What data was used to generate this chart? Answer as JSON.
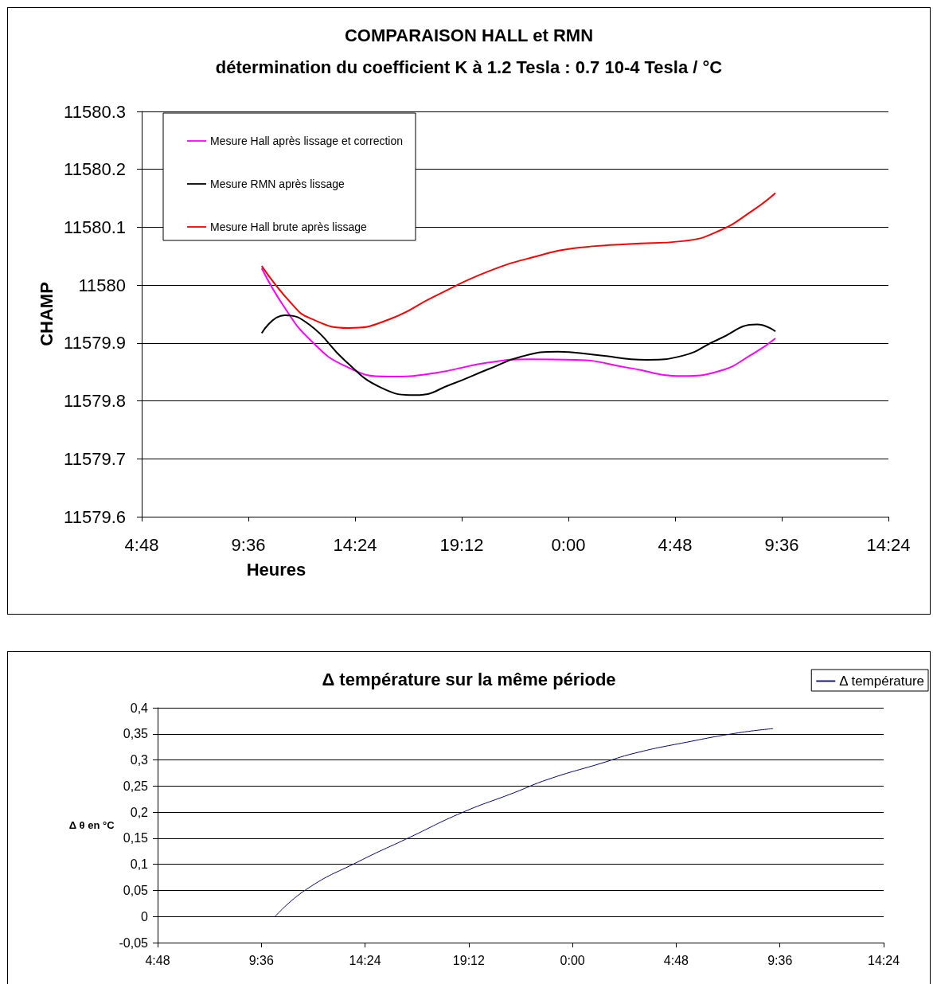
{
  "chart_data": [
    {
      "type": "line",
      "title": "COMPARAISON HALL et RMN",
      "subtitle": "détermination du coefficient K à 1.2 Tesla : 0.7 10-4 Tesla / °C",
      "xlabel": "Heures",
      "ylabel": "CHAMP",
      "xlim": [
        "--01-01T04:48",
        "--01-02T14:24"
      ],
      "xticks": [
        {
          "value": "--01-01T04:48",
          "label": "4:48"
        },
        {
          "value": "--01-01T09:36",
          "label": "9:36"
        },
        {
          "value": "--01-01T14:24",
          "label": "14:24"
        },
        {
          "value": "--01-01T19:12",
          "label": "19:12"
        },
        {
          "value": "--01-02T00:00",
          "label": "0:00"
        },
        {
          "value": "--01-02T04:48",
          "label": "4:48"
        },
        {
          "value": "--01-02T09:36",
          "label": "9:36"
        },
        {
          "value": "--01-02T14:24",
          "label": "14:24"
        }
      ],
      "ylim": [
        11579.6,
        11580.3
      ],
      "yticks": [
        11579.6,
        11579.7,
        11579.8,
        11579.9,
        {
          "value": 11580,
          "label": "11580"
        },
        11580.1,
        11580.2,
        11580.3
      ],
      "grid": "y",
      "legend": "top left",
      "marker": "none",
      "line_style": "solid",
      "series": [
        {
          "name": "Mesure Hall après lissage et correction",
          "color": "#ff00ff",
          "x": [
            "--01-01T10:12",
            "--01-01T11:14",
            "--01-01T12:22",
            "--01-01T13:58",
            "--01-01T15:53",
            "--01-01T17:57",
            "--01-01T20:21",
            "--01-01T22:16",
            "--01-02T00:20",
            "--01-02T02:44",
            "--01-02T05:08",
            "--01-02T06:44",
            "--01-02T08:20",
            "--01-02T09:19"
          ],
          "values": [
            11580.029,
            11579.961,
            11579.906,
            11579.86,
            11579.842,
            11579.848,
            11579.866,
            11579.872,
            11579.871,
            11579.857,
            11579.843,
            11579.851,
            11579.882,
            11579.908
          ]
        },
        {
          "name": "Mesure RMN après lissage",
          "color": "#000000",
          "x": [
            "--01-01T10:12",
            "--01-01T11:14",
            "--01-01T12:22",
            "--01-01T13:58",
            "--01-01T15:34",
            "--01-01T17:09",
            "--01-01T18:45",
            "--01-01T20:21",
            "--01-01T21:56",
            "--01-01T23:32",
            "--01-02T01:08",
            "--01-02T03:32",
            "--01-02T05:08",
            "--01-02T06:44",
            "--01-02T08:29",
            "--01-02T09:19"
          ],
          "values": [
            11579.917,
            11579.948,
            11579.931,
            11579.869,
            11579.823,
            11579.81,
            11579.829,
            11579.854,
            11579.877,
            11579.885,
            11579.88,
            11579.871,
            11579.878,
            11579.906,
            11579.932,
            11579.92
          ]
        },
        {
          "name": "Mesure Hall brute après lissage",
          "color": "#ff0000",
          "x": [
            "--01-01T10:12",
            "--01-01T11:34",
            "--01-01T12:22",
            "--01-01T14:07",
            "--01-01T15:53",
            "--01-01T17:57",
            "--01-01T20:21",
            "--01-01T22:35",
            "--01-02T00:20",
            "--01-02T02:44",
            "--01-02T05:08",
            "--01-02T06:44",
            "--01-02T08:20",
            "--01-02T09:19"
          ],
          "values": [
            11580.033,
            11579.967,
            11579.943,
            11579.926,
            11579.94,
            11579.98,
            11580.023,
            11580.05,
            11580.064,
            11580.071,
            11580.076,
            11580.093,
            11580.13,
            11580.159
          ]
        }
      ]
    },
    {
      "type": "line",
      "title": "Δ température sur la même période",
      "ylabel": "Δ θ en °C",
      "xlim": [
        "--01-01T04:48",
        "--01-02T14:24"
      ],
      "xticks": [
        {
          "value": "--01-01T04:48",
          "label": "4:48"
        },
        {
          "value": "--01-01T09:36",
          "label": "9:36"
        },
        {
          "value": "--01-01T14:24",
          "label": "14:24"
        },
        {
          "value": "--01-01T19:12",
          "label": "19:12"
        },
        {
          "value": "--01-02T00:00",
          "label": "0:00"
        },
        {
          "value": "--01-02T04:48",
          "label": "4:48"
        },
        {
          "value": "--01-02T09:36",
          "label": "9:36"
        },
        {
          "value": "--01-02T14:24",
          "label": "14:24"
        }
      ],
      "ylim": [
        -0.05,
        0.4
      ],
      "yticks": [
        {
          "value": -0.05,
          "label": "-0,05"
        },
        0,
        {
          "value": 0.05,
          "label": "0,05"
        },
        {
          "value": 0.1,
          "label": "0,1"
        },
        {
          "value": 0.15,
          "label": "0,15"
        },
        {
          "value": 0.2,
          "label": "0,2"
        },
        {
          "value": 0.25,
          "label": "0,25"
        },
        {
          "value": 0.3,
          "label": "0,3"
        },
        {
          "value": 0.35,
          "label": "0,35"
        },
        {
          "value": 0.4,
          "label": "0,4"
        }
      ],
      "grid": "y",
      "legend": "top right",
      "marker": "none",
      "line_style": "solid",
      "series": [
        {
          "name": "Δ température",
          "color": "#000080",
          "x": [
            "--01-01T10:14",
            "--01-01T11:41",
            "--01-01T14:05",
            "--01-01T16:29",
            "--01-01T18:53",
            "--01-01T21:17",
            "--01-01T22:53",
            "--01-02T01:17",
            "--01-02T02:53",
            "--01-02T05:17",
            "--01-02T07:41",
            "--01-02T09:17"
          ],
          "values": [
            0,
            0.052,
            0.105,
            0.152,
            0.199,
            0.237,
            0.263,
            0.293,
            0.313,
            0.334,
            0.352,
            0.36
          ]
        }
      ]
    }
  ]
}
